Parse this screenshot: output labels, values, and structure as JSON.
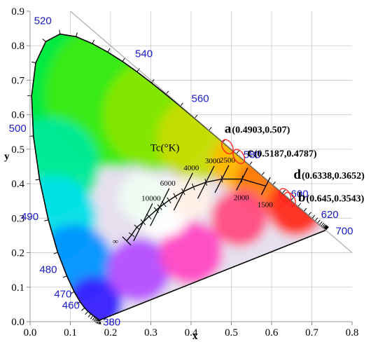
{
  "chart_data": {
    "type": "scatter",
    "xlabel": "x",
    "ylabel": "y",
    "xlim": [
      0.0,
      0.8
    ],
    "ylim": [
      0.0,
      0.9
    ],
    "x_ticks": [
      "0.0",
      "0.1",
      "0.2",
      "0.3",
      "0.4",
      "0.5",
      "0.6",
      "0.7",
      "0.8"
    ],
    "y_ticks": [
      "0.0",
      "0.1",
      "0.2",
      "0.3",
      "0.4",
      "0.5",
      "0.6",
      "0.7",
      "0.8",
      "0.9"
    ],
    "x_tick_values": [
      0,
      0.1,
      0.2,
      0.3,
      0.4,
      0.5,
      0.6,
      0.7,
      0.8
    ],
    "y_tick_values": [
      0,
      0.1,
      0.2,
      0.3,
      0.4,
      0.5,
      0.6,
      0.7,
      0.8,
      0.9
    ],
    "spectral_locus": [
      [
        0.1741,
        0.005
      ],
      [
        0.1738,
        0.0049
      ],
      [
        0.1736,
        0.0049
      ],
      [
        0.1733,
        0.0048
      ],
      [
        0.173,
        0.0048
      ],
      [
        0.1726,
        0.0048
      ],
      [
        0.1721,
        0.0048
      ],
      [
        0.1714,
        0.0051
      ],
      [
        0.1703,
        0.0058
      ],
      [
        0.1689,
        0.0069
      ],
      [
        0.1669,
        0.0086
      ],
      [
        0.1644,
        0.0109
      ],
      [
        0.1611,
        0.0138
      ],
      [
        0.1566,
        0.0177
      ],
      [
        0.151,
        0.0227
      ],
      [
        0.144,
        0.0297
      ],
      [
        0.1355,
        0.0399
      ],
      [
        0.1241,
        0.0578
      ],
      [
        0.1096,
        0.0868
      ],
      [
        0.0913,
        0.1327
      ],
      [
        0.0687,
        0.2007
      ],
      [
        0.0454,
        0.295
      ],
      [
        0.0235,
        0.4127
      ],
      [
        0.0082,
        0.5384
      ],
      [
        0.0039,
        0.6548
      ],
      [
        0.0139,
        0.7502
      ],
      [
        0.0389,
        0.812
      ],
      [
        0.0743,
        0.8338
      ],
      [
        0.1142,
        0.8262
      ],
      [
        0.1547,
        0.8059
      ],
      [
        0.1929,
        0.7816
      ],
      [
        0.2296,
        0.7543
      ],
      [
        0.2658,
        0.7243
      ],
      [
        0.3016,
        0.6923
      ],
      [
        0.3373,
        0.6589
      ],
      [
        0.3731,
        0.6245
      ],
      [
        0.4087,
        0.5896
      ],
      [
        0.4441,
        0.5547
      ],
      [
        0.4788,
        0.5202
      ],
      [
        0.5125,
        0.4866
      ],
      [
        0.5448,
        0.4544
      ],
      [
        0.5752,
        0.4242
      ],
      [
        0.6029,
        0.3965
      ],
      [
        0.627,
        0.3725
      ],
      [
        0.6482,
        0.3514
      ],
      [
        0.6658,
        0.334
      ],
      [
        0.6801,
        0.3197
      ],
      [
        0.6915,
        0.3083
      ],
      [
        0.7006,
        0.2993
      ],
      [
        0.7079,
        0.292
      ],
      [
        0.714,
        0.2859
      ],
      [
        0.719,
        0.2809
      ],
      [
        0.723,
        0.277
      ],
      [
        0.726,
        0.274
      ],
      [
        0.7283,
        0.2717
      ],
      [
        0.73,
        0.27
      ],
      [
        0.7311,
        0.2689
      ],
      [
        0.732,
        0.268
      ],
      [
        0.7327,
        0.2673
      ],
      [
        0.7334,
        0.2666
      ],
      [
        0.734,
        0.266
      ],
      [
        0.7344,
        0.2656
      ],
      [
        0.7346,
        0.2654
      ],
      [
        0.7347,
        0.2653
      ]
    ],
    "wavelength_labels": [
      {
        "text": "380",
        "x": 0.1741,
        "y": 0.005
      },
      {
        "text": "460",
        "x": 0.144,
        "y": 0.0297
      },
      {
        "text": "470",
        "x": 0.1241,
        "y": 0.0578
      },
      {
        "text": "480",
        "x": 0.0913,
        "y": 0.1327
      },
      {
        "text": "490",
        "x": 0.0454,
        "y": 0.295
      },
      {
        "text": "500",
        "x": 0.0082,
        "y": 0.5384
      },
      {
        "text": "520",
        "x": 0.0743,
        "y": 0.8338
      },
      {
        "text": "540",
        "x": 0.2296,
        "y": 0.7543
      },
      {
        "text": "560",
        "x": 0.3731,
        "y": 0.6245
      },
      {
        "text": "580",
        "x": 0.5125,
        "y": 0.4866
      },
      {
        "text": "600",
        "x": 0.627,
        "y": 0.3725
      },
      {
        "text": "620",
        "x": 0.6915,
        "y": 0.3083
      },
      {
        "text": "700",
        "x": 0.7347,
        "y": 0.2653
      }
    ],
    "planckian_locus": [
      [
        0.2399,
        0.234
      ],
      [
        0.2524,
        0.2522
      ],
      [
        0.2653,
        0.2738
      ],
      [
        0.2806,
        0.2883
      ],
      [
        0.2952,
        0.3048
      ],
      [
        0.3135,
        0.3236
      ],
      [
        0.3221,
        0.3318
      ],
      [
        0.3325,
        0.3411
      ],
      [
        0.3451,
        0.3516
      ],
      [
        0.3608,
        0.3635
      ],
      [
        0.3805,
        0.3768
      ],
      [
        0.4058,
        0.3906
      ],
      [
        0.4369,
        0.4041
      ],
      [
        0.4765,
        0.4137
      ],
      [
        0.5266,
        0.4133
      ],
      [
        0.5856,
        0.3931
      ]
    ],
    "isotherms": [
      {
        "text": "∞",
        "x": 0.2399,
        "y": 0.234
      },
      {
        "text": "10000",
        "x": 0.2806,
        "y": 0.2883
      },
      {
        "text": "6000",
        "x": 0.3221,
        "y": 0.3318
      },
      {
        "text": "4000",
        "x": 0.3805,
        "y": 0.3768
      },
      {
        "text": "3000",
        "x": 0.4369,
        "y": 0.4041
      },
      {
        "text": "2500",
        "x": 0.4765,
        "y": 0.4137
      },
      {
        "text": "2000",
        "x": 0.5266,
        "y": 0.4133
      },
      {
        "text": "1500",
        "x": 0.5856,
        "y": 0.3931
      }
    ],
    "tc_label": "Tc(°K)",
    "series": [
      {
        "points": [
          {
            "label": "a",
            "coord_text": "(0.4903,0.507)",
            "x": 0.4903,
            "y": 0.507
          },
          {
            "label": "c",
            "coord_text": "(0.5187,0.4787)",
            "x": 0.5187,
            "y": 0.4787
          },
          {
            "label": "d",
            "coord_text": "(0.6338,0.3652)",
            "x": 0.6338,
            "y": 0.3652
          },
          {
            "label": "b",
            "coord_text": "(0.645,0.3543)",
            "x": 0.645,
            "y": 0.3543
          }
        ]
      }
    ],
    "colors": {
      "locus": "#000000",
      "wavelength_label": "#1a1acc",
      "point_marker": "#ff2020",
      "frame": "#aaaaaa",
      "grid": "#c8c8c8"
    },
    "grid": true
  }
}
